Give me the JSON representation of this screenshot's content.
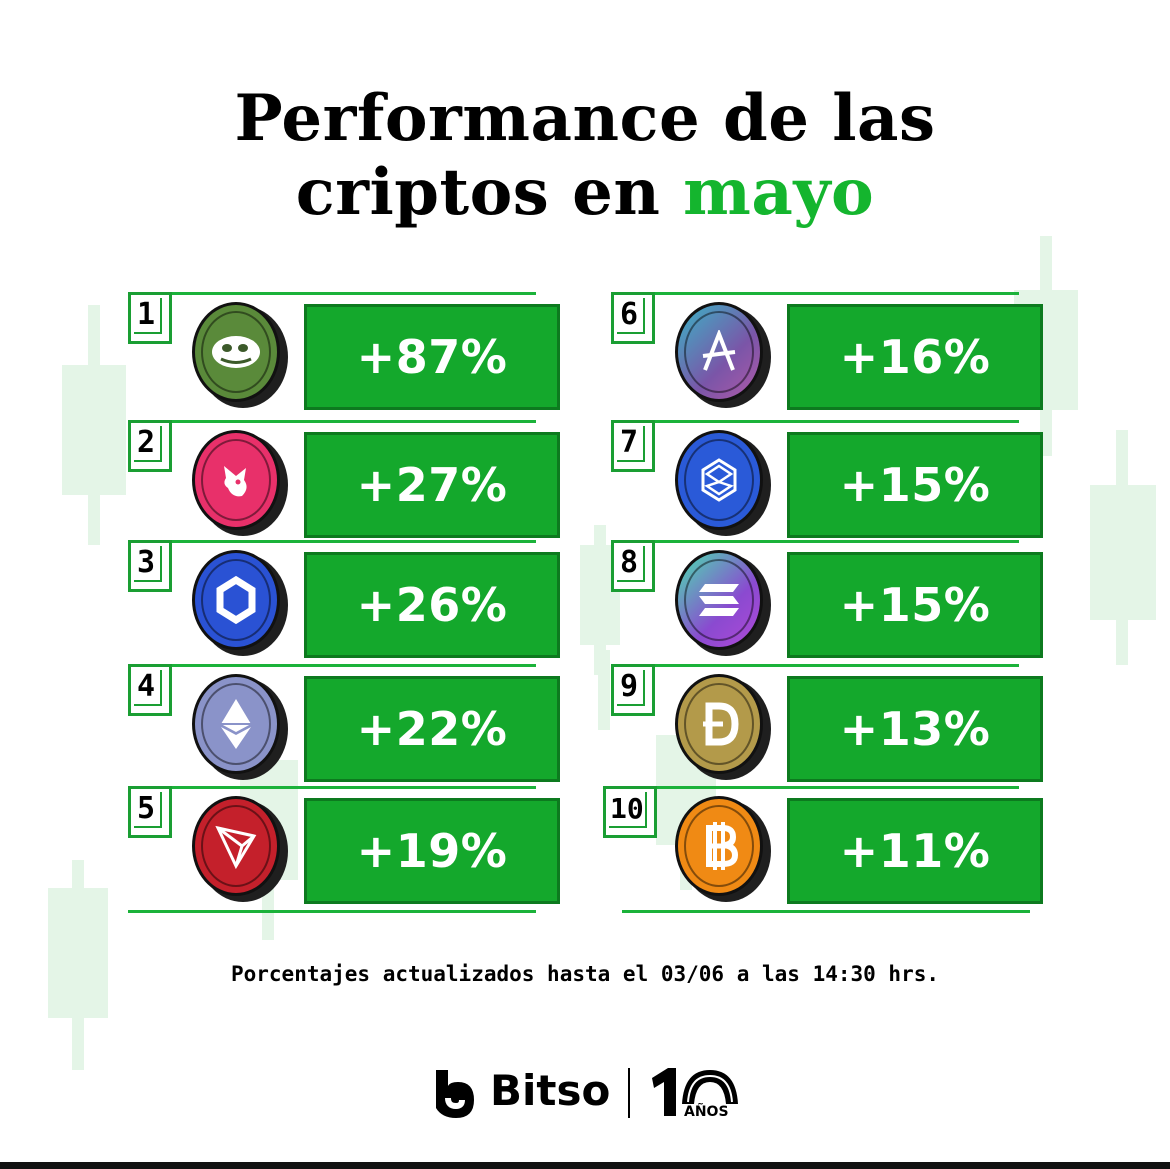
{
  "title": {
    "line1": "Performance de las",
    "line2_prefix": "criptos en ",
    "line2_accent": "mayo"
  },
  "colors": {
    "accent": "#14b52e",
    "box": "#14a82c",
    "box_border": "#0d7a1f"
  },
  "rankings": [
    {
      "rank": "1",
      "percent": "+87%",
      "icon": "pepe-icon",
      "coin_color": "#5a8a3a"
    },
    {
      "rank": "2",
      "percent": "+27%",
      "icon": "uniswap-icon",
      "coin_color": "#e8306a"
    },
    {
      "rank": "3",
      "percent": "+26%",
      "icon": "chainlink-icon",
      "coin_color": "#2a52d4"
    },
    {
      "rank": "4",
      "percent": "+22%",
      "icon": "ethereum-icon",
      "coin_color": "#8a93c9"
    },
    {
      "rank": "5",
      "percent": "+19%",
      "icon": "tron-icon",
      "coin_color": "#c4202b"
    },
    {
      "rank": "6",
      "percent": "+16%",
      "icon": "aave-icon",
      "coin_color": "#7a55a8"
    },
    {
      "rank": "7",
      "percent": "+15%",
      "icon": "fantom-icon",
      "coin_color": "#2a5ad8"
    },
    {
      "rank": "8",
      "percent": "+15%",
      "icon": "solana-icon",
      "coin_color": "#8a4ad0"
    },
    {
      "rank": "9",
      "percent": "+13%",
      "icon": "dogecoin-icon",
      "coin_color": "#b39a4a"
    },
    {
      "rank": "10",
      "percent": "+11%",
      "icon": "bitcoin-icon",
      "coin_color": "#f08a14"
    }
  ],
  "footnote": "Porcentajes actualizados hasta el 03/06 a las 14:30 hrs.",
  "brand": {
    "name": "Bitso",
    "anniversary_number": "1",
    "anniversary_label": "AÑOS"
  }
}
